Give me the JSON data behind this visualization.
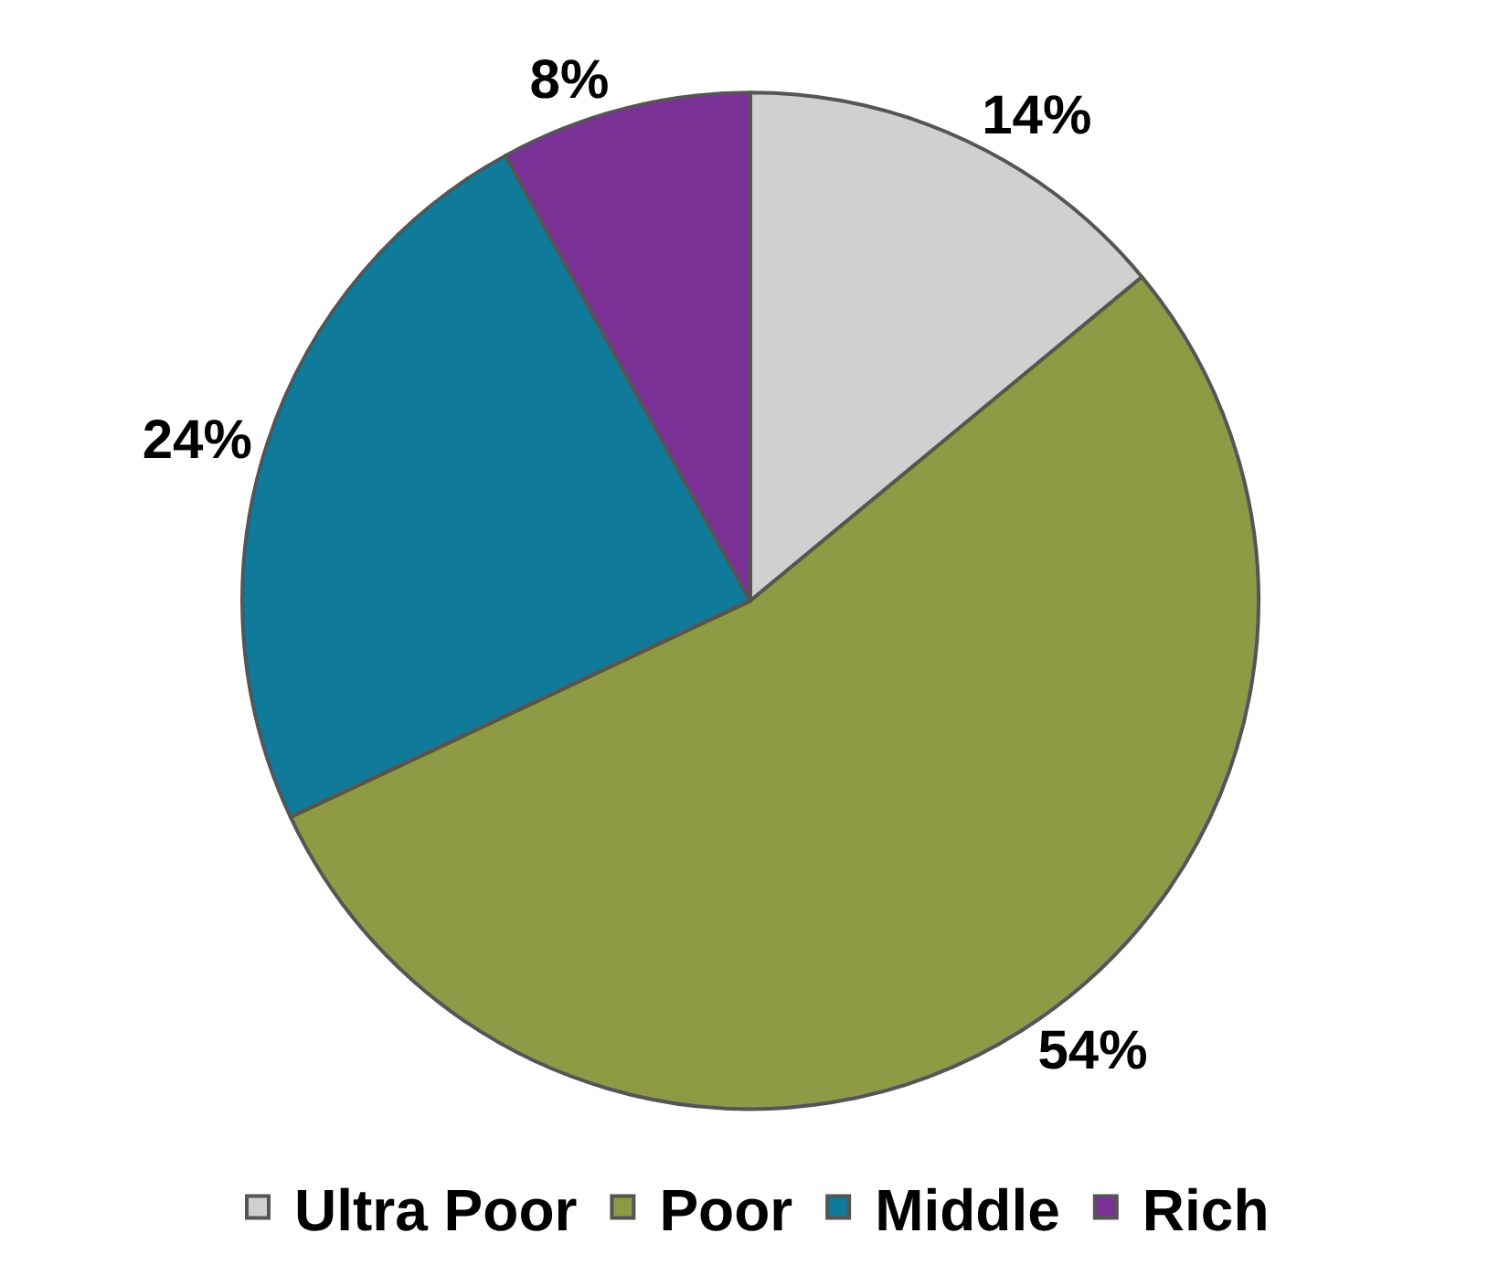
{
  "chart_data": {
    "type": "pie",
    "categories": [
      "Ultra Poor",
      "Poor",
      "Middle",
      "Rich"
    ],
    "values": [
      14,
      54,
      24,
      8
    ],
    "colors": [
      "#d0d0d0",
      "#8e9a44",
      "#0f7a99",
      "#7b3096"
    ],
    "value_labels": [
      "14%",
      "54%",
      "24%",
      "8%"
    ],
    "legend": "bottom"
  }
}
